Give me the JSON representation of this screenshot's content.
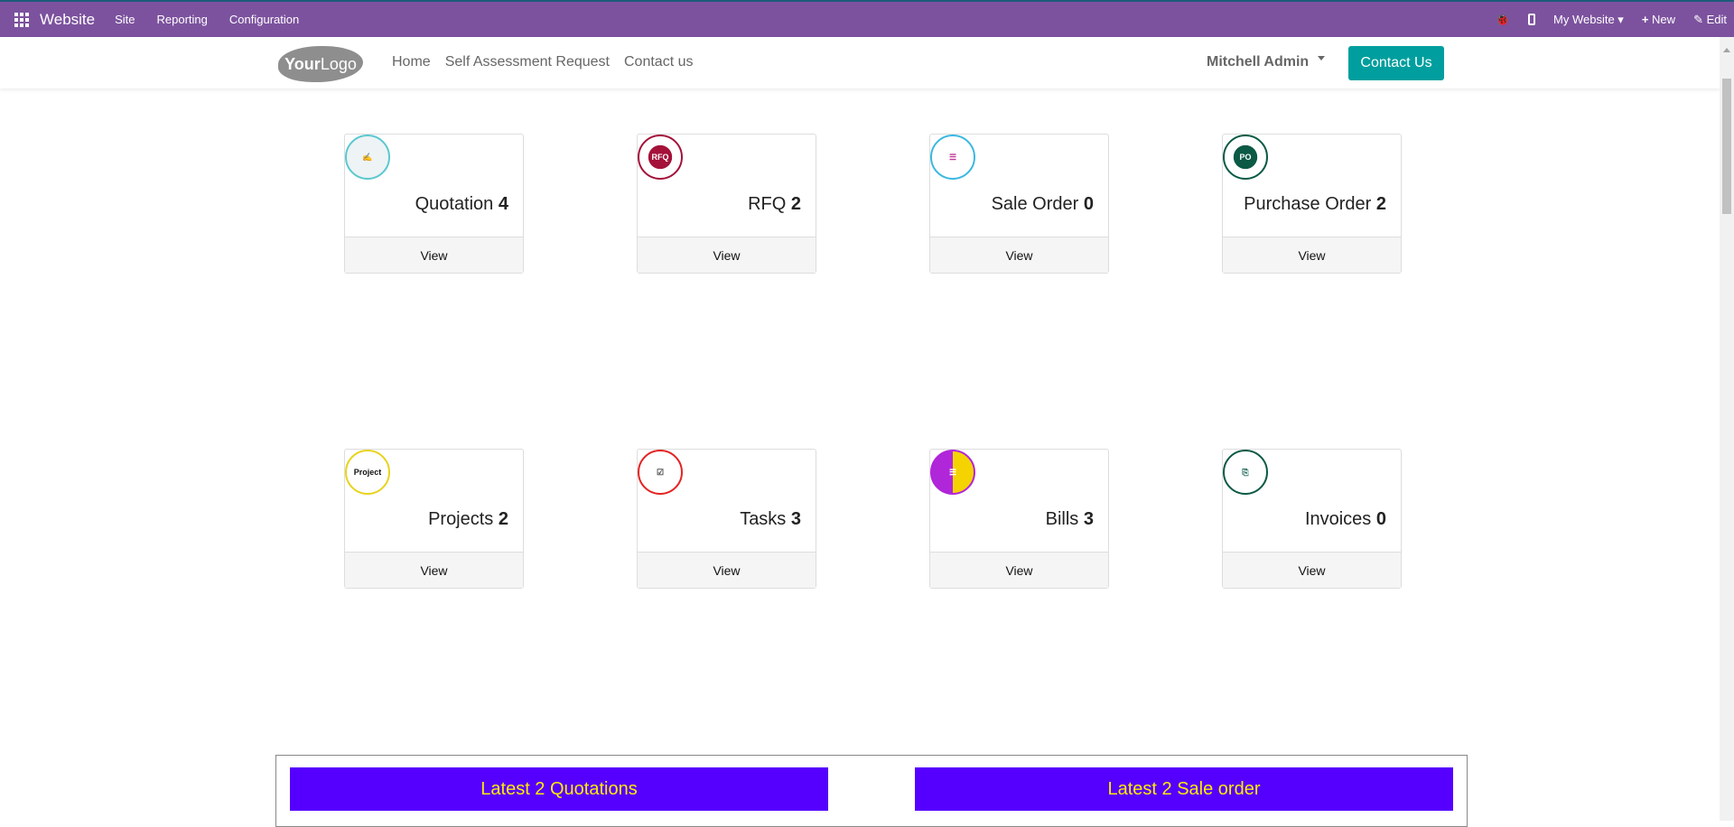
{
  "topbar": {
    "app": "Website",
    "menus": [
      "Site",
      "Reporting",
      "Configuration"
    ],
    "website": "My Website",
    "new": "New",
    "edit": "Edit",
    "color": "#7c529e"
  },
  "header": {
    "logo": {
      "bold": "Your",
      "light": "Logo"
    },
    "nav": [
      "Home",
      "Self Assessment Request",
      "Contact us"
    ],
    "user": "Mitchell Admin",
    "contact_button": "Contact Us"
  },
  "cards": [
    {
      "label": "Quotation",
      "count": "4",
      "view": "View",
      "icon": "quotation-icon"
    },
    {
      "label": "RFQ",
      "count": "2",
      "view": "View",
      "icon": "rfq-icon",
      "icon_text": "RFQ"
    },
    {
      "label": "Sale Order",
      "count": "0",
      "view": "View",
      "icon": "sale-order-icon"
    },
    {
      "label": "Purchase Order",
      "count": "2",
      "view": "View",
      "icon": "purchase-order-icon",
      "icon_text": "PO"
    },
    {
      "label": "Projects",
      "count": "2",
      "view": "View",
      "icon": "projects-icon",
      "icon_text": "Project"
    },
    {
      "label": "Tasks",
      "count": "3",
      "view": "View",
      "icon": "tasks-icon"
    },
    {
      "label": "Bills",
      "count": "3",
      "view": "View",
      "icon": "bills-icon"
    },
    {
      "label": "Invoices",
      "count": "0",
      "view": "View",
      "icon": "invoices-icon"
    }
  ],
  "latest": {
    "quotations": "Latest 2 Quotations",
    "sale_orders": "Latest 2 Sale order"
  }
}
